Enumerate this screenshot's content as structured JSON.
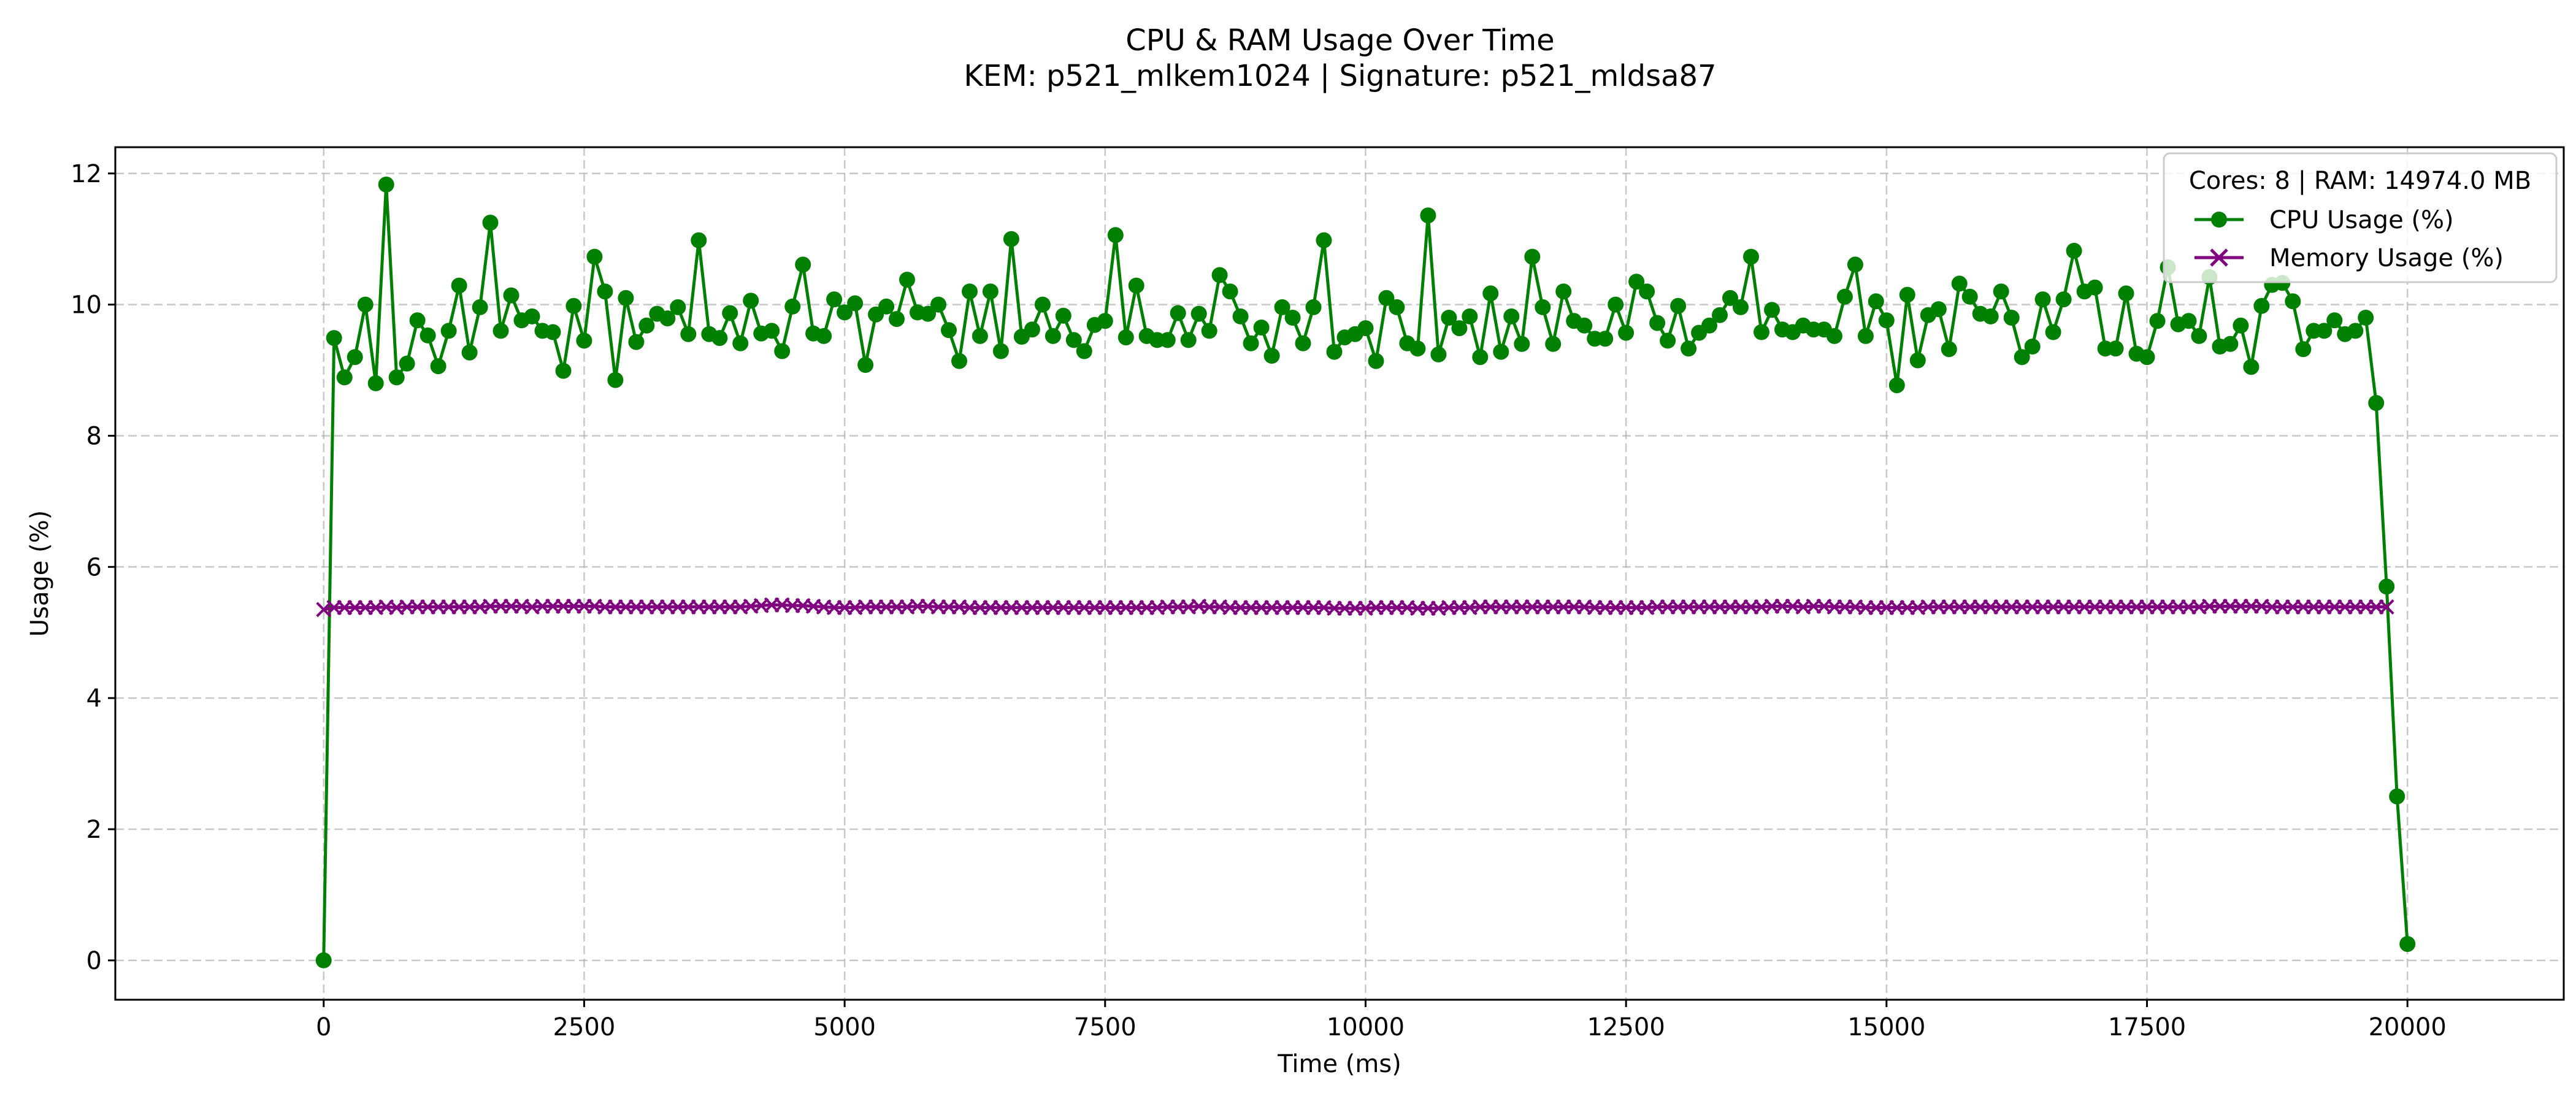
{
  "chart_data": {
    "type": "line",
    "title": "CPU & RAM Usage Over Time",
    "subtitle": "KEM: p521_mlkem1024 | Signature: p521_mldsa87",
    "xlabel": "Time (ms)",
    "ylabel": "Usage (%)",
    "xlim": [
      -2000,
      21500
    ],
    "ylim": [
      -0.6,
      12.4
    ],
    "xticks": [
      0,
      2500,
      5000,
      7500,
      10000,
      12500,
      15000,
      17500,
      20000
    ],
    "yticks": [
      0,
      2,
      4,
      6,
      8,
      10,
      12
    ],
    "grid": true,
    "grid_style": "dashed",
    "legend_placement": "top-right",
    "legend_title": "Cores: 8 | RAM: 14974.0 MB",
    "series": [
      {
        "name": "CPU Usage (%)",
        "color": "#008000",
        "marker": "circle",
        "x_start": 0,
        "x_step": 100,
        "values": [
          0,
          9.49,
          8.89,
          9.2,
          10.0,
          8.8,
          11.83,
          8.89,
          9.1,
          9.76,
          9.53,
          9.06,
          9.6,
          10.29,
          9.27,
          9.96,
          11.25,
          9.6,
          10.14,
          9.76,
          9.82,
          9.6,
          9.58,
          8.99,
          9.98,
          9.45,
          10.73,
          10.2,
          8.85,
          10.1,
          9.43,
          9.68,
          9.86,
          9.79,
          9.96,
          9.55,
          10.98,
          9.55,
          9.49,
          9.87,
          9.41,
          10.06,
          9.56,
          9.6,
          9.29,
          9.97,
          10.61,
          9.56,
          9.52,
          10.08,
          9.88,
          10.02,
          9.08,
          9.85,
          9.97,
          9.78,
          10.38,
          9.88,
          9.86,
          10.0,
          9.61,
          9.14,
          10.2,
          9.52,
          10.2,
          9.29,
          11.0,
          9.51,
          9.62,
          10.0,
          9.52,
          9.83,
          9.46,
          9.29,
          9.69,
          9.75,
          11.06,
          9.5,
          10.29,
          9.52,
          9.46,
          9.46,
          9.87,
          9.46,
          9.86,
          9.6,
          10.45,
          10.2,
          9.82,
          9.41,
          9.65,
          9.22,
          9.96,
          9.8,
          9.41,
          9.96,
          10.98,
          9.28,
          9.5,
          9.55,
          9.64,
          9.14,
          10.1,
          9.96,
          9.41,
          9.33,
          11.36,
          9.24,
          9.8,
          9.64,
          9.82,
          9.2,
          10.17,
          9.28,
          9.82,
          9.4,
          10.73,
          9.96,
          9.4,
          10.2,
          9.75,
          9.68,
          9.48,
          9.48,
          10.0,
          9.57,
          10.35,
          10.2,
          9.72,
          9.45,
          9.98,
          9.33,
          9.57,
          9.68,
          9.84,
          10.1,
          9.96,
          10.73,
          9.58,
          9.92,
          9.62,
          9.58,
          9.68,
          9.62,
          9.62,
          9.52,
          10.12,
          10.61,
          9.52,
          10.05,
          9.76,
          8.77,
          10.15,
          9.15,
          9.84,
          9.93,
          9.32,
          10.32,
          10.12,
          9.86,
          9.82,
          10.2,
          9.8,
          9.2,
          9.36,
          10.08,
          9.58,
          10.08,
          10.82,
          10.2,
          10.26,
          9.33,
          9.33,
          10.17,
          9.25,
          9.2,
          9.75,
          10.57,
          9.7,
          9.75,
          9.52,
          10.42,
          9.36,
          9.4,
          9.68,
          9.05,
          9.98,
          10.3,
          10.33,
          10.05,
          9.32,
          9.6,
          9.6,
          9.76,
          9.55,
          9.6,
          9.8,
          8.5,
          5.7,
          2.5,
          0.25
        ]
      },
      {
        "name": "Memory Usage (%)",
        "color": "#800080",
        "marker": "x",
        "x_start": 0,
        "x_step": 100,
        "values": [
          5.35,
          5.38,
          5.38,
          5.38,
          5.38,
          5.38,
          5.39,
          5.38,
          5.39,
          5.39,
          5.39,
          5.39,
          5.39,
          5.39,
          5.39,
          5.39,
          5.4,
          5.4,
          5.4,
          5.4,
          5.39,
          5.4,
          5.4,
          5.4,
          5.4,
          5.4,
          5.4,
          5.39,
          5.39,
          5.39,
          5.39,
          5.39,
          5.39,
          5.39,
          5.39,
          5.39,
          5.39,
          5.39,
          5.39,
          5.39,
          5.39,
          5.4,
          5.41,
          5.42,
          5.42,
          5.41,
          5.41,
          5.4,
          5.39,
          5.38,
          5.38,
          5.38,
          5.39,
          5.39,
          5.39,
          5.39,
          5.39,
          5.4,
          5.4,
          5.39,
          5.39,
          5.39,
          5.38,
          5.38,
          5.38,
          5.38,
          5.38,
          5.38,
          5.38,
          5.38,
          5.38,
          5.38,
          5.38,
          5.38,
          5.38,
          5.38,
          5.38,
          5.38,
          5.38,
          5.38,
          5.38,
          5.39,
          5.39,
          5.39,
          5.4,
          5.39,
          5.39,
          5.38,
          5.38,
          5.38,
          5.38,
          5.38,
          5.38,
          5.38,
          5.38,
          5.38,
          5.38,
          5.37,
          5.37,
          5.37,
          5.37,
          5.38,
          5.38,
          5.38,
          5.38,
          5.37,
          5.37,
          5.37,
          5.38,
          5.38,
          5.38,
          5.39,
          5.39,
          5.39,
          5.39,
          5.39,
          5.39,
          5.39,
          5.39,
          5.39,
          5.39,
          5.39,
          5.38,
          5.38,
          5.38,
          5.38,
          5.38,
          5.38,
          5.39,
          5.39,
          5.39,
          5.39,
          5.39,
          5.39,
          5.39,
          5.39,
          5.39,
          5.39,
          5.39,
          5.4,
          5.4,
          5.4,
          5.39,
          5.4,
          5.4,
          5.39,
          5.39,
          5.39,
          5.38,
          5.38,
          5.38,
          5.38,
          5.38,
          5.38,
          5.39,
          5.39,
          5.39,
          5.39,
          5.39,
          5.39,
          5.39,
          5.39,
          5.39,
          5.39,
          5.39,
          5.39,
          5.39,
          5.39,
          5.39,
          5.39,
          5.39,
          5.39,
          5.39,
          5.39,
          5.39,
          5.39,
          5.39,
          5.39,
          5.39,
          5.39,
          5.39,
          5.4,
          5.4,
          5.4,
          5.4,
          5.4,
          5.4,
          5.39,
          5.39,
          5.39,
          5.39,
          5.39,
          5.39,
          5.39,
          5.39,
          5.39,
          5.39,
          5.39,
          5.39
        ]
      }
    ]
  }
}
